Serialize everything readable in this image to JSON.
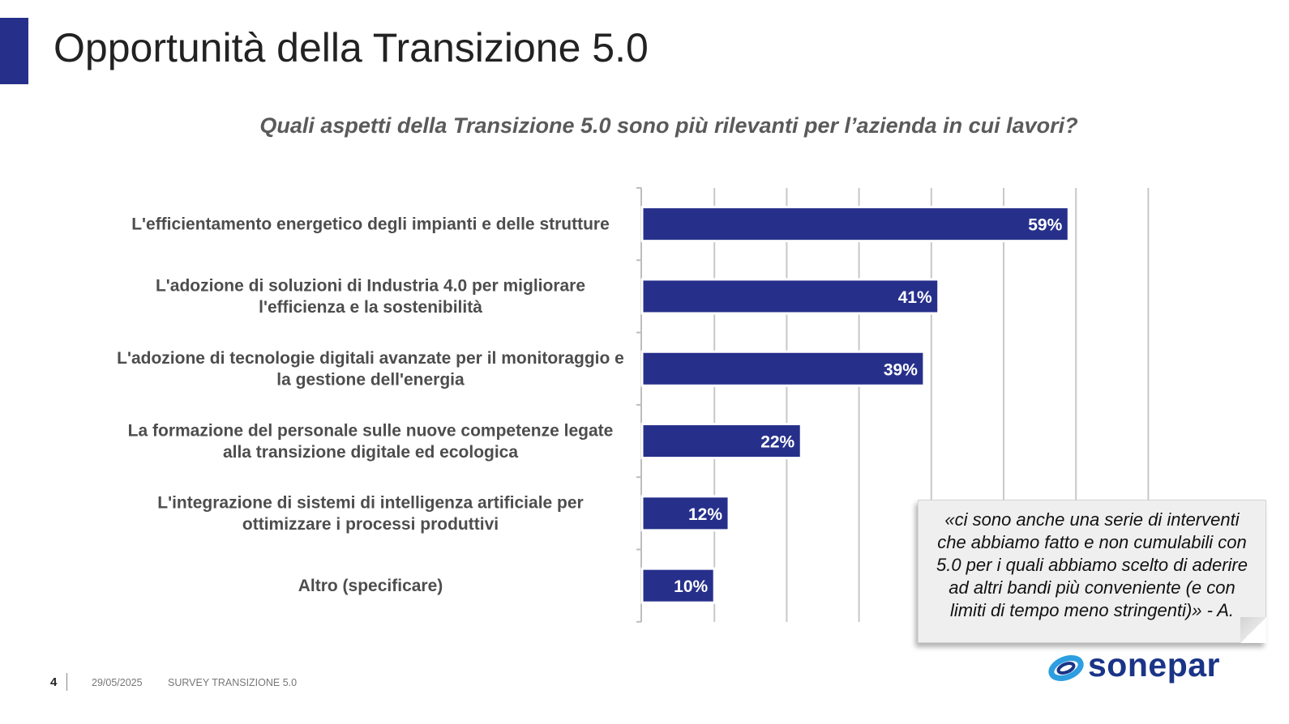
{
  "slide": {
    "title": "Opportunità della Transizione 5.0",
    "page_number": "4",
    "date": "29/05/2025",
    "footer_label": "SURVEY TRANSIZIONE 5.0",
    "logo_text": "sonepar"
  },
  "colors": {
    "accent": "#26308b",
    "bar": "#26308b",
    "logo_blue": "#1a3487",
    "logo_cyan": "#2d9ee0"
  },
  "quote": {
    "lines": [
      "«ci sono anche una serie di interventi",
      "che abbiamo fatto e non cumulabili con",
      "5.0 per i quali abbiamo scelto di aderire",
      "ad altri bandi più conveniente (e con",
      "limiti di tempo meno stringenti)» - A."
    ]
  },
  "chart_data": {
    "type": "bar",
    "orientation": "horizontal",
    "title": "Quali aspetti della Transizione 5.0 sono più rilevanti per l’azienda in cui lavori?",
    "categories": [
      [
        "L'efficientamento energetico degli impianti e delle strutture"
      ],
      [
        "L'adozione di soluzioni di Industria 4.0 per migliorare",
        "l'efficienza e la sostenibilità"
      ],
      [
        "L'adozione di tecnologie digitali avanzate per il monitoraggio e",
        "la gestione dell'energia"
      ],
      [
        "La formazione del personale sulle nuove competenze legate",
        "alla transizione digitale ed ecologica"
      ],
      [
        "L'integrazione di sistemi di intelligenza artificiale per",
        "ottimizzare i processi produttivi"
      ],
      [
        "Altro (specificare)"
      ]
    ],
    "values": [
      59,
      41,
      39,
      22,
      12,
      10
    ],
    "value_labels": [
      "59%",
      "41%",
      "39%",
      "22%",
      "12%",
      "10%"
    ],
    "xlim": [
      0,
      70
    ],
    "grid": true,
    "legend": "none"
  }
}
